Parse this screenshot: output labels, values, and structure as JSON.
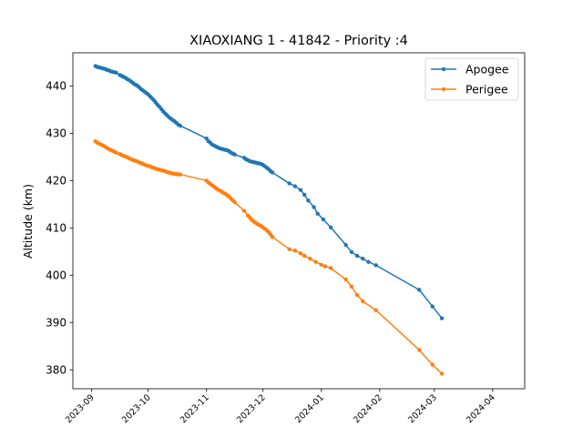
{
  "chart_data": {
    "type": "line",
    "title": "XIAOXIANG 1 - 41842 - Priority :4",
    "xlabel": "",
    "ylabel": "Altitude (km)",
    "x_type": "date",
    "xlim": [
      "2023-08-22",
      "2024-04-18"
    ],
    "ylim": [
      376,
      447
    ],
    "x_ticks": [
      "2023-09-01",
      "2023-10-01",
      "2023-11-01",
      "2023-12-01",
      "2024-01-01",
      "2024-02-01",
      "2024-03-01",
      "2024-04-01"
    ],
    "x_tick_labels": [
      "2023-09",
      "2023-10",
      "2023-11",
      "2023-12",
      "2024-01",
      "2024-02",
      "2024-03",
      "2024-04"
    ],
    "y_ticks": [
      380,
      390,
      400,
      410,
      420,
      430,
      440
    ],
    "y_tick_labels": [
      "380",
      "390",
      "400",
      "410",
      "420",
      "430",
      "440"
    ],
    "grid": false,
    "legend_position": "top-right",
    "series": [
      {
        "name": "Apogee",
        "color": "#1f77b4",
        "points": [
          [
            "2023-09-03",
            444.2
          ],
          [
            "2023-09-04",
            444.0
          ],
          [
            "2023-09-05",
            443.9
          ],
          [
            "2023-09-06",
            443.8
          ],
          [
            "2023-09-07",
            443.7
          ],
          [
            "2023-09-08",
            443.6
          ],
          [
            "2023-09-09",
            443.4
          ],
          [
            "2023-09-10",
            443.3
          ],
          [
            "2023-09-11",
            443.1
          ],
          [
            "2023-09-12",
            443.0
          ],
          [
            "2023-09-13",
            442.9
          ],
          [
            "2023-09-14",
            442.8
          ],
          [
            "2023-09-16",
            442.3
          ],
          [
            "2023-09-17",
            442.1
          ],
          [
            "2023-09-18",
            441.9
          ],
          [
            "2023-09-19",
            441.7
          ],
          [
            "2023-09-20",
            441.4
          ],
          [
            "2023-09-21",
            441.2
          ],
          [
            "2023-09-22",
            440.9
          ],
          [
            "2023-09-23",
            440.6
          ],
          [
            "2023-09-24",
            440.3
          ],
          [
            "2023-09-25",
            440.1
          ],
          [
            "2023-09-26",
            439.8
          ],
          [
            "2023-09-27",
            439.4
          ],
          [
            "2023-09-28",
            439.1
          ],
          [
            "2023-09-29",
            438.8
          ],
          [
            "2023-09-30",
            438.5
          ],
          [
            "2023-10-01",
            438.2
          ],
          [
            "2023-10-02",
            437.8
          ],
          [
            "2023-10-03",
            437.4
          ],
          [
            "2023-10-04",
            437.0
          ],
          [
            "2023-10-05",
            436.5
          ],
          [
            "2023-10-06",
            436.0
          ],
          [
            "2023-10-07",
            435.6
          ],
          [
            "2023-10-08",
            435.1
          ],
          [
            "2023-10-09",
            434.6
          ],
          [
            "2023-10-10",
            434.2
          ],
          [
            "2023-10-11",
            433.8
          ],
          [
            "2023-10-12",
            433.4
          ],
          [
            "2023-10-13",
            433.1
          ],
          [
            "2023-10-14",
            432.8
          ],
          [
            "2023-10-15",
            432.5
          ],
          [
            "2023-10-16",
            432.2
          ],
          [
            "2023-10-17",
            431.8
          ],
          [
            "2023-10-18",
            431.6
          ],
          [
            "2023-11-01",
            428.9
          ],
          [
            "2023-11-02",
            428.3
          ],
          [
            "2023-11-03",
            428.0
          ],
          [
            "2023-11-04",
            427.6
          ],
          [
            "2023-11-05",
            427.4
          ],
          [
            "2023-11-06",
            427.2
          ],
          [
            "2023-11-07",
            427.0
          ],
          [
            "2023-11-08",
            426.8
          ],
          [
            "2023-11-09",
            426.7
          ],
          [
            "2023-11-10",
            426.6
          ],
          [
            "2023-11-11",
            426.5
          ],
          [
            "2023-11-12",
            426.4
          ],
          [
            "2023-11-13",
            426.2
          ],
          [
            "2023-11-14",
            425.9
          ],
          [
            "2023-11-15",
            425.7
          ],
          [
            "2023-11-16",
            425.5
          ],
          [
            "2023-11-21",
            424.8
          ],
          [
            "2023-11-22",
            424.5
          ],
          [
            "2023-11-23",
            424.3
          ],
          [
            "2023-11-24",
            424.1
          ],
          [
            "2023-11-25",
            424.0
          ],
          [
            "2023-11-26",
            423.9
          ],
          [
            "2023-11-27",
            423.8
          ],
          [
            "2023-11-28",
            423.7
          ],
          [
            "2023-11-29",
            423.6
          ],
          [
            "2023-11-30",
            423.5
          ],
          [
            "2023-12-01",
            423.3
          ],
          [
            "2023-12-02",
            423.0
          ],
          [
            "2023-12-03",
            422.7
          ],
          [
            "2023-12-04",
            422.4
          ],
          [
            "2023-12-05",
            422.0
          ],
          [
            "2023-12-06",
            421.7
          ],
          [
            "2023-12-15",
            419.4
          ],
          [
            "2023-12-18",
            418.8
          ],
          [
            "2023-12-21",
            418.0
          ],
          [
            "2023-12-23",
            417.0
          ],
          [
            "2023-12-25",
            415.8
          ],
          [
            "2023-12-28",
            414.4
          ],
          [
            "2023-12-30",
            413.0
          ],
          [
            "2024-01-02",
            411.8
          ],
          [
            "2024-01-06",
            410.1
          ],
          [
            "2024-01-14",
            406.4
          ],
          [
            "2024-01-17",
            404.9
          ],
          [
            "2024-01-20",
            404.1
          ],
          [
            "2024-01-23",
            403.5
          ],
          [
            "2024-01-26",
            402.8
          ],
          [
            "2024-01-30",
            402.1
          ],
          [
            "2024-02-22",
            396.9
          ],
          [
            "2024-02-29",
            393.4
          ],
          [
            "2024-03-05",
            390.9
          ]
        ]
      },
      {
        "name": "Perigee",
        "color": "#ff7f0e",
        "points": [
          [
            "2023-09-03",
            428.3
          ],
          [
            "2023-09-04",
            428.0
          ],
          [
            "2023-09-05",
            427.8
          ],
          [
            "2023-09-06",
            427.6
          ],
          [
            "2023-09-07",
            427.4
          ],
          [
            "2023-09-08",
            427.2
          ],
          [
            "2023-09-09",
            426.9
          ],
          [
            "2023-09-10",
            426.7
          ],
          [
            "2023-09-11",
            426.5
          ],
          [
            "2023-09-12",
            426.3
          ],
          [
            "2023-09-13",
            426.1
          ],
          [
            "2023-09-14",
            425.9
          ],
          [
            "2023-09-16",
            425.6
          ],
          [
            "2023-09-17",
            425.4
          ],
          [
            "2023-09-18",
            425.2
          ],
          [
            "2023-09-19",
            425.1
          ],
          [
            "2023-09-20",
            424.9
          ],
          [
            "2023-09-21",
            424.7
          ],
          [
            "2023-09-22",
            424.5
          ],
          [
            "2023-09-23",
            424.3
          ],
          [
            "2023-09-24",
            424.2
          ],
          [
            "2023-09-25",
            424.1
          ],
          [
            "2023-09-26",
            423.9
          ],
          [
            "2023-09-27",
            423.7
          ],
          [
            "2023-09-28",
            423.6
          ],
          [
            "2023-09-29",
            423.4
          ],
          [
            "2023-09-30",
            423.2
          ],
          [
            "2023-10-01",
            423.1
          ],
          [
            "2023-10-02",
            423.0
          ],
          [
            "2023-10-03",
            422.8
          ],
          [
            "2023-10-04",
            422.7
          ],
          [
            "2023-10-05",
            422.5
          ],
          [
            "2023-10-06",
            422.4
          ],
          [
            "2023-10-07",
            422.3
          ],
          [
            "2023-10-08",
            422.2
          ],
          [
            "2023-10-09",
            422.1
          ],
          [
            "2023-10-10",
            422.0
          ],
          [
            "2023-10-11",
            421.8
          ],
          [
            "2023-10-12",
            421.7
          ],
          [
            "2023-10-13",
            421.6
          ],
          [
            "2023-10-14",
            421.5
          ],
          [
            "2023-10-15",
            421.4
          ],
          [
            "2023-10-16",
            421.4
          ],
          [
            "2023-10-17",
            421.3
          ],
          [
            "2023-10-18",
            421.3
          ],
          [
            "2023-11-01",
            420.0
          ],
          [
            "2023-11-02",
            419.6
          ],
          [
            "2023-11-03",
            419.3
          ],
          [
            "2023-11-04",
            419.0
          ],
          [
            "2023-11-05",
            418.7
          ],
          [
            "2023-11-06",
            418.4
          ],
          [
            "2023-11-07",
            418.1
          ],
          [
            "2023-11-08",
            417.9
          ],
          [
            "2023-11-09",
            417.7
          ],
          [
            "2023-11-10",
            417.4
          ],
          [
            "2023-11-11",
            417.2
          ],
          [
            "2023-11-12",
            416.9
          ],
          [
            "2023-11-13",
            416.6
          ],
          [
            "2023-11-14",
            416.2
          ],
          [
            "2023-11-15",
            415.8
          ],
          [
            "2023-11-16",
            415.4
          ],
          [
            "2023-11-21",
            413.6
          ],
          [
            "2023-11-23",
            412.6
          ],
          [
            "2023-11-24",
            412.2
          ],
          [
            "2023-11-25",
            411.7
          ],
          [
            "2023-11-26",
            411.4
          ],
          [
            "2023-11-27",
            411.1
          ],
          [
            "2023-11-28",
            410.8
          ],
          [
            "2023-11-29",
            410.6
          ],
          [
            "2023-11-30",
            410.4
          ],
          [
            "2023-12-01",
            410.1
          ],
          [
            "2023-12-02",
            409.8
          ],
          [
            "2023-12-03",
            409.5
          ],
          [
            "2023-12-04",
            409.1
          ],
          [
            "2023-12-05",
            408.6
          ],
          [
            "2023-12-06",
            408.1
          ],
          [
            "2023-12-15",
            405.5
          ],
          [
            "2023-12-18",
            405.2
          ],
          [
            "2023-12-21",
            404.6
          ],
          [
            "2023-12-23",
            404.1
          ],
          [
            "2023-12-26",
            403.5
          ],
          [
            "2023-12-29",
            402.8
          ],
          [
            "2024-01-01",
            402.2
          ],
          [
            "2024-01-03",
            401.9
          ],
          [
            "2024-01-06",
            401.5
          ],
          [
            "2024-01-14",
            399.1
          ],
          [
            "2024-01-17",
            397.6
          ],
          [
            "2024-01-20",
            395.8
          ],
          [
            "2024-01-23",
            394.5
          ],
          [
            "2024-01-30",
            392.6
          ],
          [
            "2024-02-22",
            384.2
          ],
          [
            "2024-02-29",
            381.1
          ],
          [
            "2024-03-05",
            379.2
          ]
        ]
      }
    ]
  }
}
